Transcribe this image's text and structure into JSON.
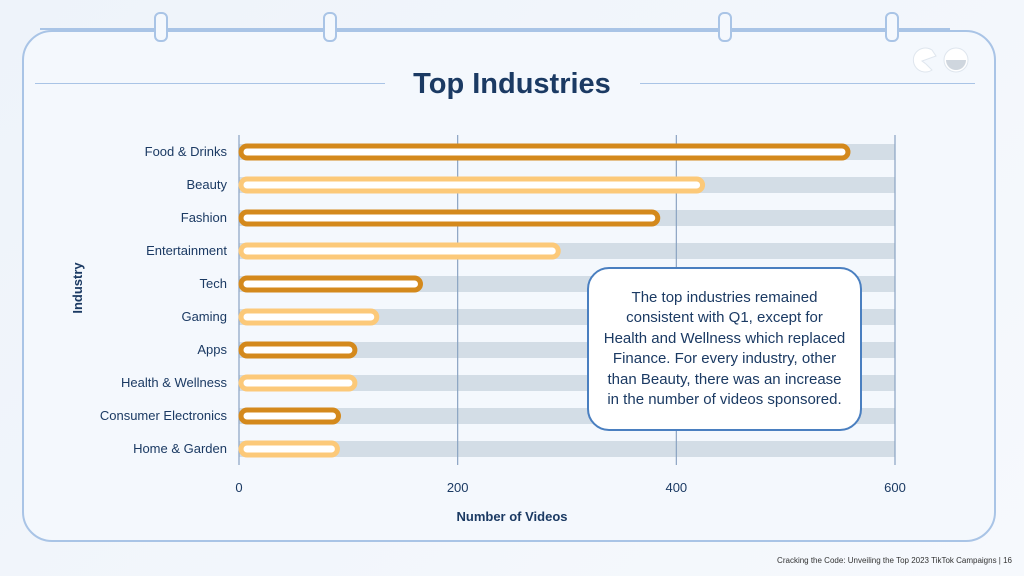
{
  "slide": {
    "title": "Top Industries",
    "footer": "Cracking the Code: Unveiling the Top 2023 TikTok Campaigns | 16",
    "callout": "The top industries remained consistent with Q1, except for Health and Wellness which replaced Finance. For every industry, other than Beauty, there was an increase in the number of videos sponsored."
  },
  "chart_data": {
    "type": "bar",
    "orientation": "horizontal",
    "title": "Top Industries",
    "xlabel": "Number of Videos",
    "ylabel": "Industry",
    "categories": [
      "Food & Drinks",
      "Beauty",
      "Fashion",
      "Entertainment",
      "Tech",
      "Gaming",
      "Apps",
      "Health & Wellness",
      "Consumer Electronics",
      "Home & Garden"
    ],
    "values": [
      557,
      424,
      383,
      292,
      166,
      126,
      106,
      106,
      91,
      90
    ],
    "xlim": [
      0,
      600
    ],
    "xticks": [
      0,
      200,
      400,
      600
    ],
    "grid": true,
    "colors": {
      "dark": "#d4891c",
      "light": "#fcc979",
      "track": "#d3dde6",
      "grid": "#8aa3c2",
      "text": "#1b3a63"
    }
  }
}
